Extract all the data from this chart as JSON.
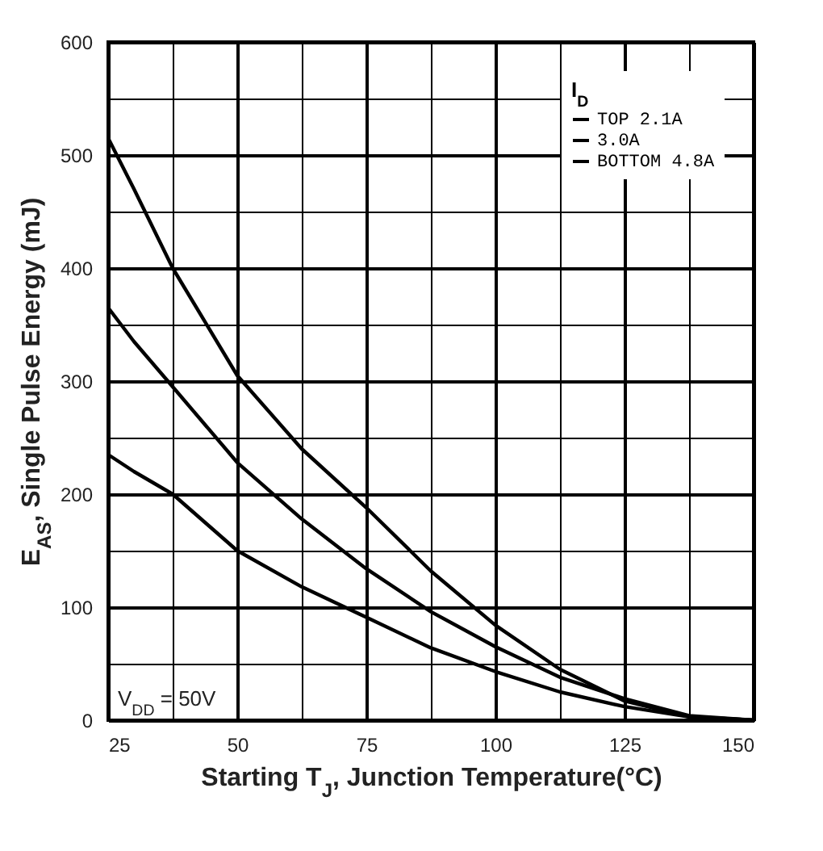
{
  "chart_data": {
    "type": "line",
    "xlabel": "Starting T$_{J}$, Junction Temperature(°C)",
    "ylabel": "E$_{AS}$, Single Pulse Energy (mJ)",
    "legend_title": "I$_{D}$",
    "annotations": [
      "V$_{DD}$ = 50V"
    ],
    "xlim": [
      25,
      150
    ],
    "xticks": [
      25,
      {
        "value": 37.5,
        "label": null
      },
      50,
      {
        "value": 62.5,
        "label": null
      },
      75,
      {
        "value": 87.5,
        "label": null
      },
      100,
      {
        "value": 112.5,
        "label": null
      },
      125,
      {
        "value": 137.5,
        "label": null
      },
      150
    ],
    "ylim": [
      0,
      600
    ],
    "yticks": [
      0,
      {
        "value": 50,
        "label": null
      },
      100,
      {
        "value": 150,
        "label": null
      },
      200,
      {
        "value": 250,
        "label": null
      },
      300,
      {
        "value": 350,
        "label": null
      },
      400,
      {
        "value": 450,
        "label": null
      },
      500,
      {
        "value": 550,
        "label": null
      },
      600
    ],
    "grid": true,
    "legend": "top right",
    "marker": "none",
    "line_style": "solid",
    "x": [
      25,
      30,
      37.5,
      50,
      62.5,
      75,
      87.5,
      100,
      112.5,
      125,
      137.5,
      150
    ],
    "series": [
      {
        "name": "TOP 2.1A",
        "color": "#000000",
        "values": [
          515,
          470,
          400,
          305,
          240,
          188,
          132,
          84,
          45,
          17,
          3,
          0
        ]
      },
      {
        "name": "3.0A",
        "color": "#000000",
        "values": [
          365,
          335,
          295,
          228,
          178,
          134,
          96,
          65,
          38,
          19,
          4,
          0
        ]
      },
      {
        "name": "BOTTOM 4.8A",
        "color": "#000000",
        "values": [
          235,
          220,
          200,
          150,
          118,
          91,
          64,
          43,
          25,
          12,
          3,
          0
        ]
      }
    ]
  }
}
